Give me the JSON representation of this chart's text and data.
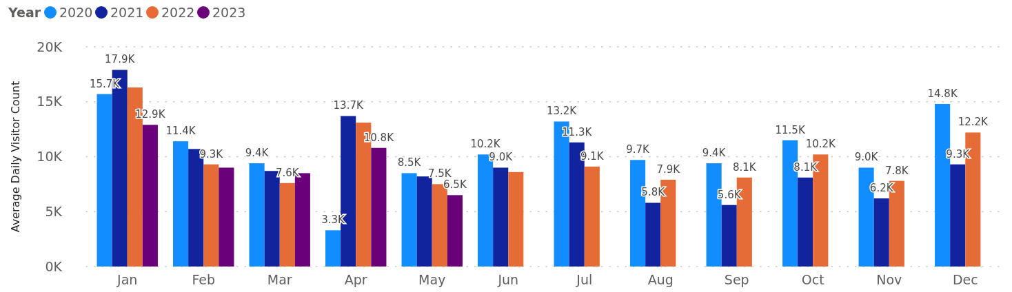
{
  "chart_data": {
    "type": "bar",
    "ylabel": "Average Daily Visitor Count",
    "legend_title": "Year",
    "legend": "top left",
    "grid": "y",
    "categories": [
      "Jan",
      "Feb",
      "Mar",
      "Apr",
      "May",
      "Jun",
      "Jul",
      "Aug",
      "Sep",
      "Oct",
      "Nov",
      "Dec"
    ],
    "ylim": [
      0,
      20000
    ],
    "yticks": [
      {
        "value": 0,
        "label": "0K"
      },
      {
        "value": 5000,
        "label": "5K"
      },
      {
        "value": 10000,
        "label": "10K"
      },
      {
        "value": 15000,
        "label": "15K"
      },
      {
        "value": 20000,
        "label": "20K"
      }
    ],
    "series": [
      {
        "name": "2020",
        "color": "#118dff",
        "values": [
          15700,
          11400,
          9400,
          3300,
          8500,
          10200,
          13200,
          9700,
          9400,
          11500,
          9000,
          14800
        ],
        "value_labels": [
          "15.7K",
          "11.4K",
          "9.4K",
          "3.3K",
          "8.5K",
          "10.2K",
          "13.2K",
          "9.7K",
          "9.4K",
          "11.5K",
          "9.0K",
          "14.8K"
        ]
      },
      {
        "name": "2021",
        "color": "#12239e",
        "values": [
          17900,
          10700,
          8700,
          13700,
          8200,
          9000,
          11300,
          5800,
          5600,
          8100,
          6200,
          9300
        ],
        "value_labels": [
          "17.9K",
          null,
          null,
          "13.7K",
          null,
          "9.0K",
          "11.3K",
          "5.8K",
          "5.6K",
          "8.1K",
          "6.2K",
          "9.3K"
        ]
      },
      {
        "name": "2022",
        "color": "#e66c37",
        "values": [
          16300,
          9300,
          7600,
          13100,
          7500,
          8600,
          9100,
          7900,
          8100,
          10200,
          7800,
          12200
        ],
        "value_labels": [
          null,
          "9.3K",
          "7.6K",
          null,
          "7.5K",
          null,
          "9.1K",
          "7.9K",
          "8.1K",
          "10.2K",
          "7.8K",
          "12.2K"
        ]
      },
      {
        "name": "2023",
        "color": "#6b007b",
        "values": [
          12900,
          9000,
          8500,
          10800,
          6500,
          null,
          null,
          null,
          null,
          null,
          null,
          null
        ],
        "value_labels": [
          "12.9K",
          null,
          null,
          "10.8K",
          "6.5K",
          null,
          null,
          null,
          null,
          null,
          null,
          null
        ]
      }
    ]
  }
}
